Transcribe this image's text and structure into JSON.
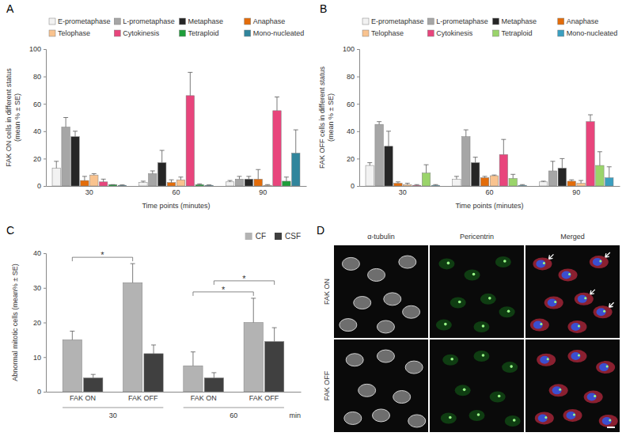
{
  "chart_data": [
    {
      "type": "bar",
      "annotations": [
        "A"
      ],
      "ylabel": [
        "FAK ON cells in different status",
        "(mean % ± SE)"
      ],
      "xlabel": "Time points (minutes)",
      "categories": [
        "30",
        "60",
        "90"
      ],
      "series": [
        {
          "name": "E-prometaphase",
          "color": "#f2f2f2",
          "values": [
            13,
            2.5,
            3
          ],
          "errors": [
            5,
            1,
            1
          ]
        },
        {
          "name": "L-prometaphase",
          "color": "#a6a6a6",
          "values": [
            43,
            9,
            5
          ],
          "errors": [
            7,
            2,
            2
          ]
        },
        {
          "name": "Metaphase",
          "color": "#262626",
          "values": [
            36,
            17,
            5
          ],
          "errors": [
            4,
            9,
            2
          ]
        },
        {
          "name": "Anaphase",
          "color": "#e36c0a",
          "values": [
            4,
            2.5,
            5
          ],
          "errors": [
            3,
            2,
            7
          ]
        },
        {
          "name": "Telophase",
          "color": "#f9c38f",
          "values": [
            8,
            4.5,
            0.5
          ],
          "errors": [
            1,
            2,
            0.5
          ]
        },
        {
          "name": "Cytokinesis",
          "color": "#e8457c",
          "values": [
            3,
            66,
            55
          ],
          "errors": [
            2,
            17,
            10
          ]
        },
        {
          "name": "Tetraploid",
          "color": "#1e9e3a",
          "values": [
            1,
            1,
            3.5
          ],
          "errors": [
            0,
            0.5,
            3
          ]
        },
        {
          "name": "Mono-nucleated",
          "color": "#31859c",
          "values": [
            0.5,
            0.5,
            24
          ],
          "errors": [
            0.3,
            0.3,
            17
          ]
        }
      ],
      "ylim": [
        0,
        100
      ],
      "yticks": [
        0,
        20,
        40,
        60,
        80,
        100
      ],
      "legend": "top"
    },
    {
      "type": "bar",
      "annotations": [
        "B"
      ],
      "ylabel": [
        "FAK OFF cells in different status",
        "(mean % ± SE)"
      ],
      "xlabel": "Time points (minutes)",
      "categories": [
        "30",
        "60",
        "90"
      ],
      "series": [
        {
          "name": "E-prometaphase",
          "color": "#f2f2f2",
          "values": [
            15,
            5,
            3
          ],
          "errors": [
            2,
            2,
            0.5
          ]
        },
        {
          "name": "L-prometaphase",
          "color": "#a6a6a6",
          "values": [
            45,
            36,
            11
          ],
          "errors": [
            2,
            5,
            7
          ]
        },
        {
          "name": "Metaphase",
          "color": "#262626",
          "values": [
            29,
            17,
            13
          ],
          "errors": [
            11,
            4,
            7
          ]
        },
        {
          "name": "Anaphase",
          "color": "#e36c0a",
          "values": [
            2,
            6,
            3.5
          ],
          "errors": [
            1,
            1,
            1
          ]
        },
        {
          "name": "Telophase",
          "color": "#f9c38f",
          "values": [
            1,
            7.5,
            2
          ],
          "errors": [
            1,
            0.5,
            2
          ]
        },
        {
          "name": "Cytokinesis",
          "color": "#e8457c",
          "values": [
            0.5,
            23,
            47
          ],
          "errors": [
            0.5,
            11,
            5
          ]
        },
        {
          "name": "Tetraploid",
          "color": "#9ad46a",
          "values": [
            9.5,
            5.5,
            15
          ],
          "errors": [
            6,
            3,
            10
          ]
        },
        {
          "name": "Mono-nucleated",
          "color": "#3a9fc0",
          "values": [
            0.5,
            0.5,
            6
          ],
          "errors": [
            0.5,
            0.5,
            8
          ]
        }
      ],
      "ylim": [
        0,
        100
      ],
      "yticks": [
        0,
        20,
        40,
        60,
        80,
        100
      ],
      "legend": "top"
    },
    {
      "type": "bar",
      "annotations": [
        "C"
      ],
      "ylabel": [
        "Abnormal mitotic cells (mean% ± SE)"
      ],
      "xlabel": "min",
      "categories": [
        "FAK ON",
        "FAK OFF",
        "FAK ON",
        "FAK OFF"
      ],
      "group_labels": [
        "30",
        "60"
      ],
      "series": [
        {
          "name": "CF",
          "color": "#b3b3b3",
          "values": [
            15,
            31.5,
            7.5,
            20
          ],
          "errors": [
            2.5,
            5.5,
            4,
            7
          ]
        },
        {
          "name": "CSF",
          "color": "#404040",
          "values": [
            4,
            11,
            4,
            14.5
          ],
          "errors": [
            1,
            2.5,
            1.5,
            4
          ]
        }
      ],
      "significance": [
        {
          "label": "*",
          "from": {
            "series": 0,
            "category": 0
          },
          "to": {
            "series": 0,
            "category": 1
          }
        },
        {
          "label": "*",
          "from": {
            "series": 0,
            "category": 2
          },
          "to": {
            "series": 0,
            "category": 3
          }
        },
        {
          "label": "*",
          "from": {
            "series": 1,
            "category": 2
          },
          "to": {
            "series": 1,
            "category": 3
          }
        }
      ],
      "ylim": [
        0,
        40
      ],
      "yticks": [
        0,
        10,
        20,
        30,
        40
      ],
      "legend": "top-right"
    }
  ],
  "image_panel": {
    "label": "D",
    "columns": [
      "α-tubulin",
      "Pericentrin",
      "Merged"
    ],
    "rows": [
      "FAK ON",
      "FAK OFF"
    ]
  }
}
